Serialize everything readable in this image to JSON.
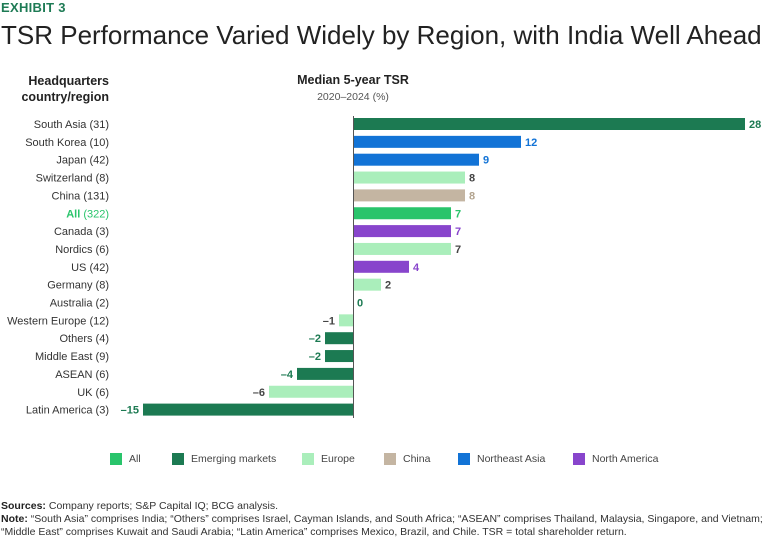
{
  "exhibit_label": "EXHIBIT 3",
  "title": "TSR Performance Varied Widely by Region, with India Well Ahead",
  "row_header": "Headquarters country/region",
  "chart_data": {
    "type": "bar",
    "orientation": "horizontal",
    "title": "Median 5-year TSR",
    "subtitle": "2020–2024 (%)",
    "xlim": [
      -15,
      28
    ],
    "categories": [
      {
        "name": "South Asia",
        "count": "(31)",
        "value": 28,
        "value_label": "28",
        "group": "emerging"
      },
      {
        "name": "South Korea",
        "count": "(10)",
        "value": 12,
        "value_label": "12",
        "group": "northeast_asia"
      },
      {
        "name": "Japan",
        "count": "(42)",
        "value": 9,
        "value_label": "9",
        "group": "northeast_asia"
      },
      {
        "name": "Switzerland",
        "count": "(8)",
        "value": 8,
        "value_label": "8",
        "group": "europe"
      },
      {
        "name": "China",
        "count": "(131)",
        "value": 8,
        "value_label": "8",
        "group": "china"
      },
      {
        "name": "All",
        "count": "(322)",
        "value": 7,
        "value_label": "7",
        "group": "all"
      },
      {
        "name": "Canada",
        "count": "(3)",
        "value": 7,
        "value_label": "7",
        "group": "north_america"
      },
      {
        "name": "Nordics",
        "count": "(6)",
        "value": 7,
        "value_label": "7",
        "group": "europe"
      },
      {
        "name": "US",
        "count": "(42)",
        "value": 4,
        "value_label": "4",
        "group": "north_america"
      },
      {
        "name": "Germany",
        "count": "(8)",
        "value": 2,
        "value_label": "2",
        "group": "europe"
      },
      {
        "name": "Australia",
        "count": "(2)",
        "value": 0,
        "value_label": "0",
        "group": "emerging"
      },
      {
        "name": "Western Europe",
        "count": "(12)",
        "value": -1,
        "value_label": "–1",
        "group": "europe"
      },
      {
        "name": "Others",
        "count": "(4)",
        "value": -2,
        "value_label": "–2",
        "group": "emerging"
      },
      {
        "name": "Middle East",
        "count": "(9)",
        "value": -2,
        "value_label": "–2",
        "group": "emerging"
      },
      {
        "name": "ASEAN",
        "count": "(6)",
        "value": -4,
        "value_label": "–4",
        "group": "emerging"
      },
      {
        "name": "UK",
        "count": "(6)",
        "value": -6,
        "value_label": "–6",
        "group": "europe"
      },
      {
        "name": "Latin America",
        "count": "(3)",
        "value": -15,
        "value_label": "–15",
        "group": "emerging"
      }
    ],
    "legend": [
      {
        "key": "all",
        "label": "All",
        "color": "#29c46b",
        "text_color": "#29c46b"
      },
      {
        "key": "emerging",
        "label": "Emerging markets",
        "color": "#1c7a52",
        "text_color": "#1c7a52"
      },
      {
        "key": "europe",
        "label": "Europe",
        "color": "#aaeebb",
        "text_color": "#444444"
      },
      {
        "key": "china",
        "label": "China",
        "color": "#c4b5a2",
        "text_color": "#b3a48f"
      },
      {
        "key": "northeast_asia",
        "label": "Northeast Asia",
        "color": "#1273d6",
        "text_color": "#1273d6"
      },
      {
        "key": "north_america",
        "label": "North America",
        "color": "#8845cc",
        "text_color": "#8845cc"
      }
    ]
  },
  "footer": {
    "sources_label": "Sources:",
    "sources_text": " Company reports; S&P Capital IQ; BCG analysis.",
    "note_label": "Note:",
    "note_text": " “South Asia” comprises India; “Others” comprises Israel, Cayman Islands, and South Africa; “ASEAN” comprises Thailand, Malaysia, Singapore, and Vietnam; “Middle East” comprises Kuwait and Saudi Arabia; “Latin America” comprises Mexico, Brazil, and Chile. TSR = total shareholder return."
  }
}
